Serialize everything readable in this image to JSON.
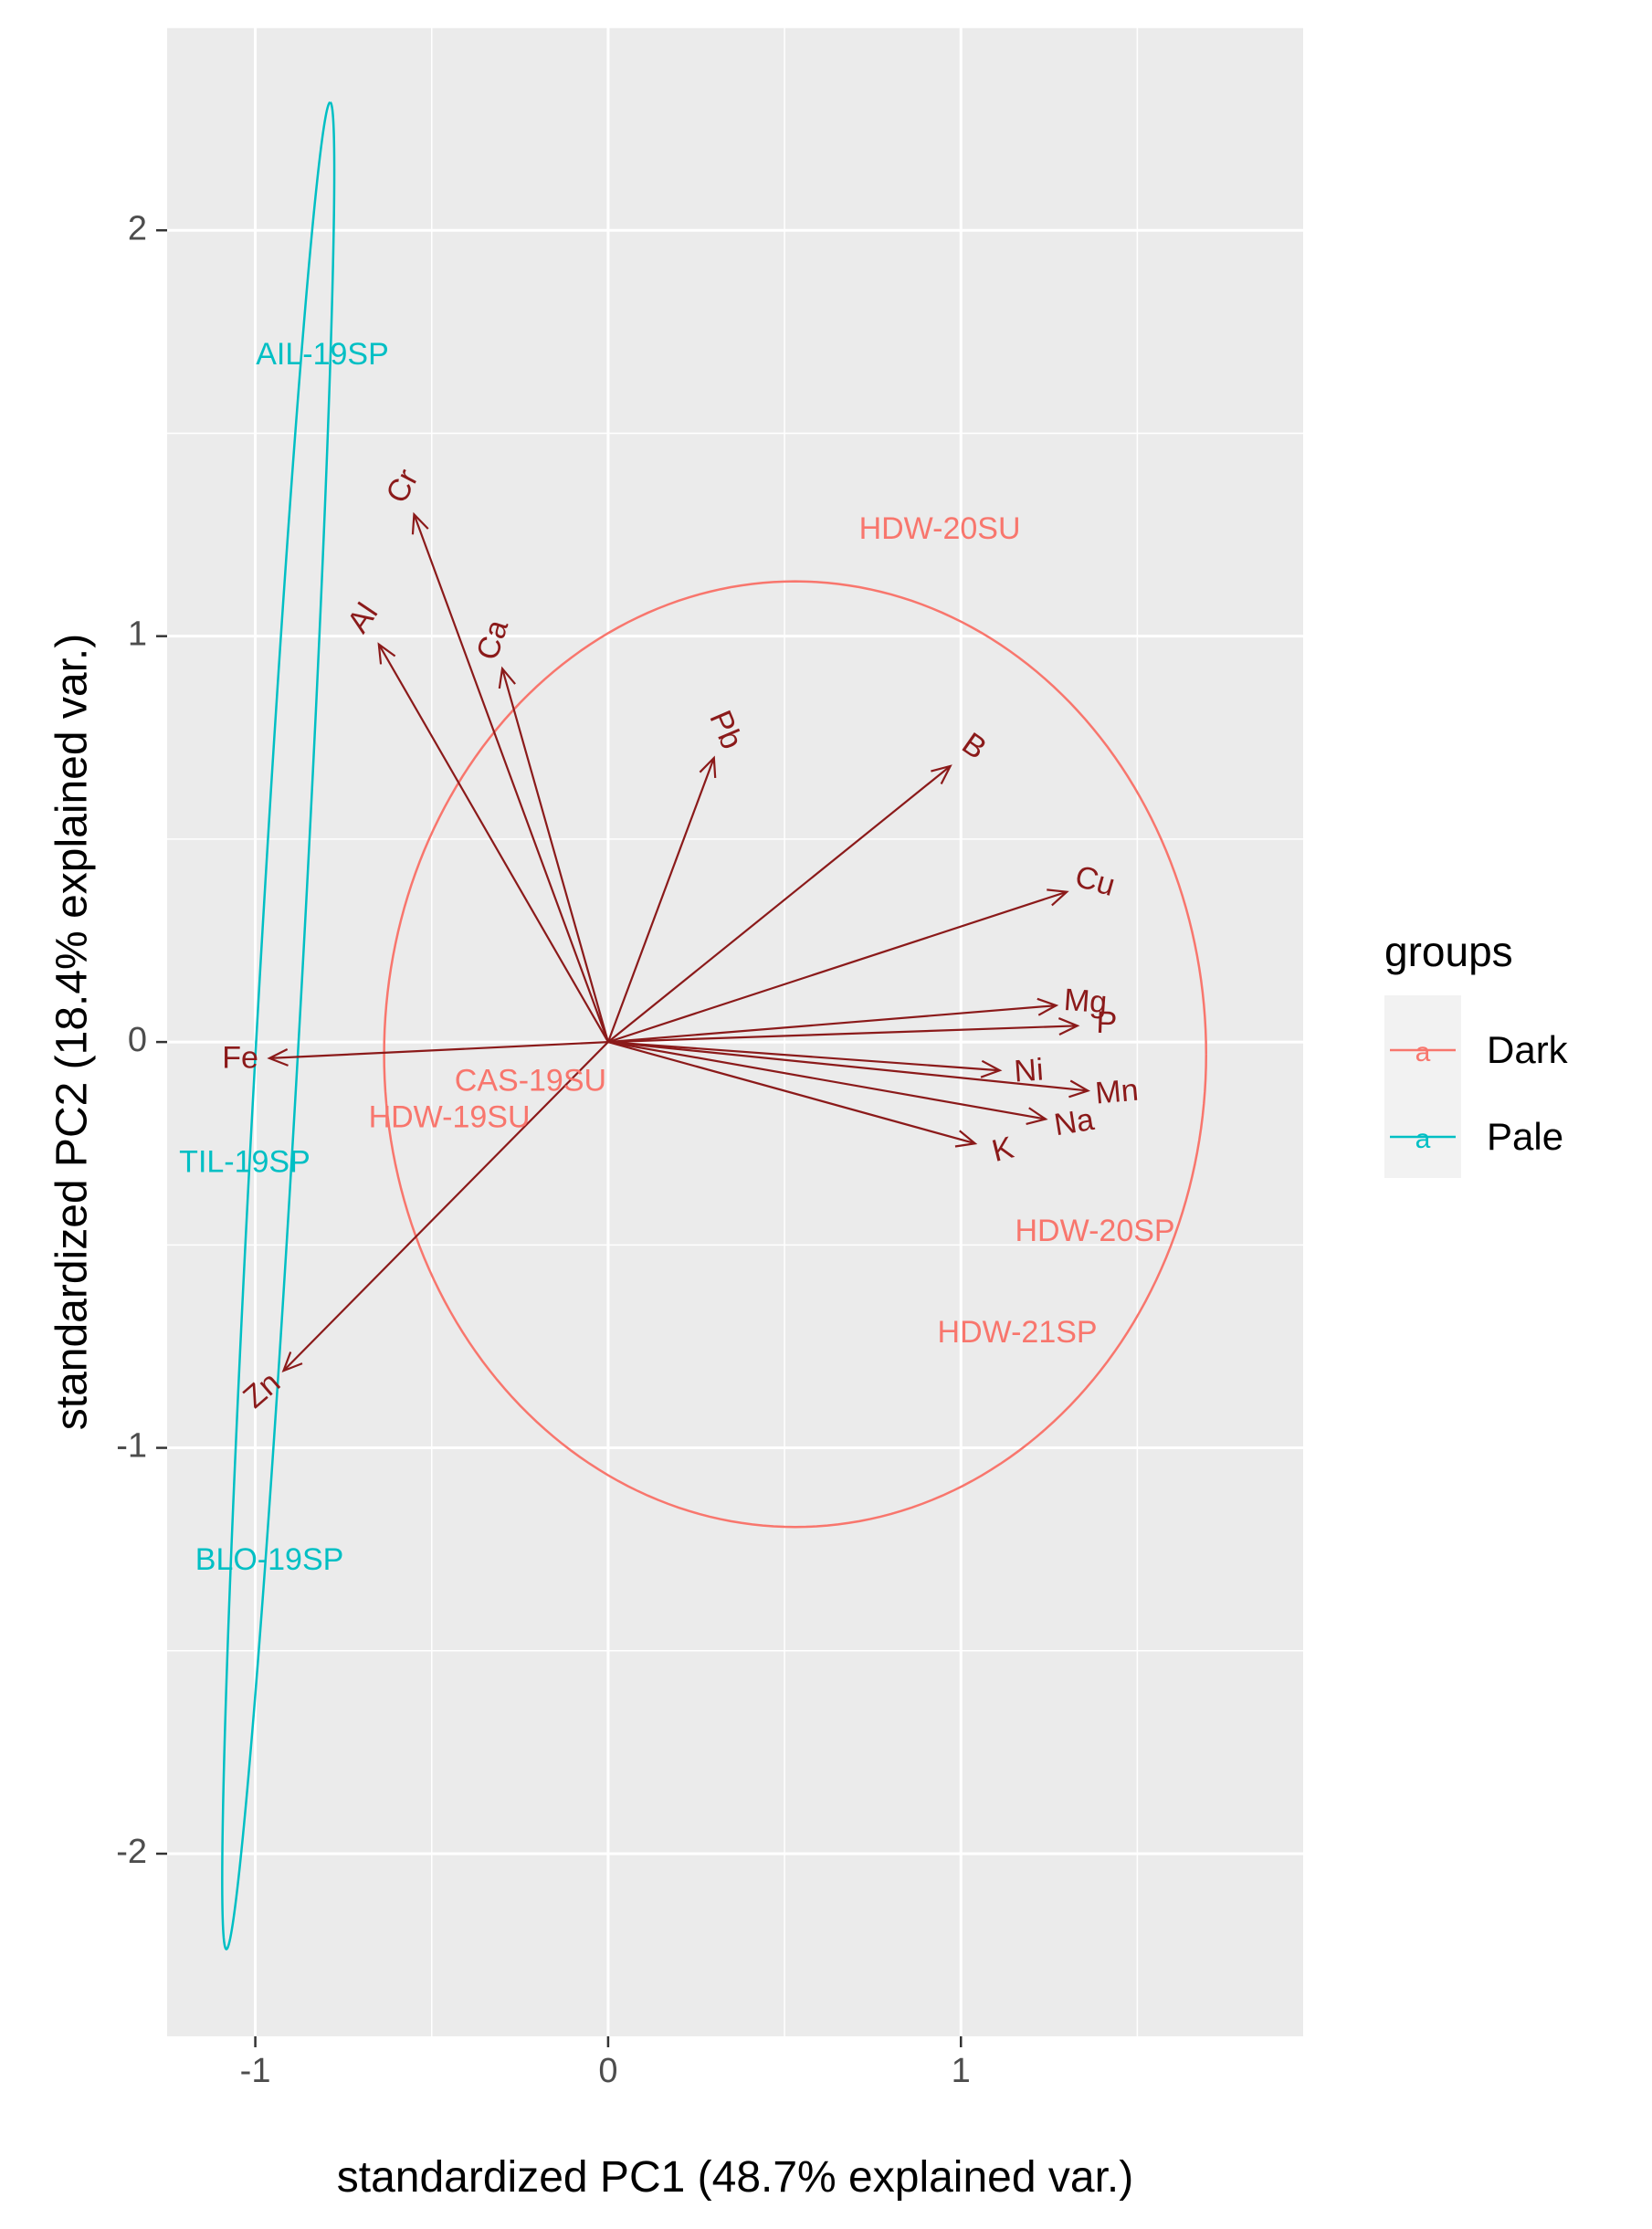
{
  "chart_data": {
    "type": "scatter",
    "subtype": "pca-biplot",
    "title": "",
    "xlabel": "standardized PC1 (48.7% explained var.)",
    "ylabel": "standardized PC2 (18.4% explained var.)",
    "xlim": [
      -1.25,
      1.97
    ],
    "ylim": [
      -2.45,
      2.5
    ],
    "x_ticks": [
      {
        "value": -1,
        "label": "-1"
      },
      {
        "value": 0,
        "label": "0"
      },
      {
        "value": 1,
        "label": "1"
      }
    ],
    "y_ticks": [
      {
        "value": -2,
        "label": "-2"
      },
      {
        "value": -1,
        "label": "-1"
      },
      {
        "value": 0,
        "label": "0"
      },
      {
        "value": 1,
        "label": "1"
      },
      {
        "value": 2,
        "label": "2"
      }
    ],
    "grid": true,
    "legend": {
      "title": "groups",
      "position": "right",
      "entries": [
        {
          "name": "Dark",
          "symbol": "a",
          "color": "#F8766D"
        },
        {
          "name": "Pale",
          "symbol": "a",
          "color": "#00BFC4"
        }
      ]
    },
    "colors": {
      "panel": "#EBEBEB",
      "grid": "#FFFFFF",
      "arrow": "#8B1A1A",
      "dark": "#F8766D",
      "pale": "#00BFC4",
      "axis_text": "#4D4D4D"
    },
    "samples": [
      {
        "label": "AIL-19SP",
        "group": "Pale",
        "x": -0.81,
        "y": 1.69
      },
      {
        "label": "TIL-19SP",
        "group": "Pale",
        "x": -1.03,
        "y": -0.3
      },
      {
        "label": "BLO-19SP",
        "group": "Pale",
        "x": -0.96,
        "y": -1.28
      },
      {
        "label": "HDW-20SU",
        "group": "Dark",
        "x": 0.94,
        "y": 1.26
      },
      {
        "label": "CAS-19SU",
        "group": "Dark",
        "x": -0.22,
        "y": -0.1
      },
      {
        "label": "HDW-19SU",
        "group": "Dark",
        "x": -0.45,
        "y": -0.19
      },
      {
        "label": "HDW-20SP",
        "group": "Dark",
        "x": 1.38,
        "y": -0.47
      },
      {
        "label": "HDW-21SP",
        "group": "Dark",
        "x": 1.16,
        "y": -0.72
      }
    ],
    "loadings": [
      {
        "variable": "Cr",
        "x": -0.55,
        "y": 1.3,
        "label_angle": -62
      },
      {
        "variable": "Ca",
        "x": -0.3,
        "y": 0.92,
        "label_angle": -72
      },
      {
        "variable": "Al",
        "x": -0.65,
        "y": 0.98,
        "label_angle": -56
      },
      {
        "variable": "Pb",
        "x": 0.3,
        "y": 0.7,
        "label_angle": 67
      },
      {
        "variable": "B",
        "x": 0.97,
        "y": 0.68,
        "label_angle": 35
      },
      {
        "variable": "Cu",
        "x": 1.3,
        "y": 0.37,
        "label_angle": 16
      },
      {
        "variable": "Mg",
        "x": 1.27,
        "y": 0.09,
        "label_angle": 4
      },
      {
        "variable": "P",
        "x": 1.33,
        "y": 0.04,
        "label_angle": 2
      },
      {
        "variable": "Ni",
        "x": 1.11,
        "y": -0.07,
        "label_angle": -4
      },
      {
        "variable": "Mn",
        "x": 1.36,
        "y": -0.12,
        "label_angle": -5
      },
      {
        "variable": "Na",
        "x": 1.24,
        "y": -0.19,
        "label_angle": -9
      },
      {
        "variable": "K",
        "x": 1.04,
        "y": -0.25,
        "label_angle": -14
      },
      {
        "variable": "Fe",
        "x": -0.96,
        "y": -0.04,
        "label_angle": 0
      },
      {
        "variable": "Zn",
        "x": -0.92,
        "y": -0.81,
        "label_angle": -41
      }
    ],
    "ellipses": [
      {
        "group": "Dark",
        "type": "circle",
        "cx": 0.53,
        "cy": -0.03,
        "r": 1.165
      },
      {
        "group": "Pale",
        "type": "ellipse",
        "cx": -0.935,
        "cy": 0.04,
        "a": 2.28,
        "b": 0.06,
        "angle_deg": 86.3
      }
    ]
  }
}
